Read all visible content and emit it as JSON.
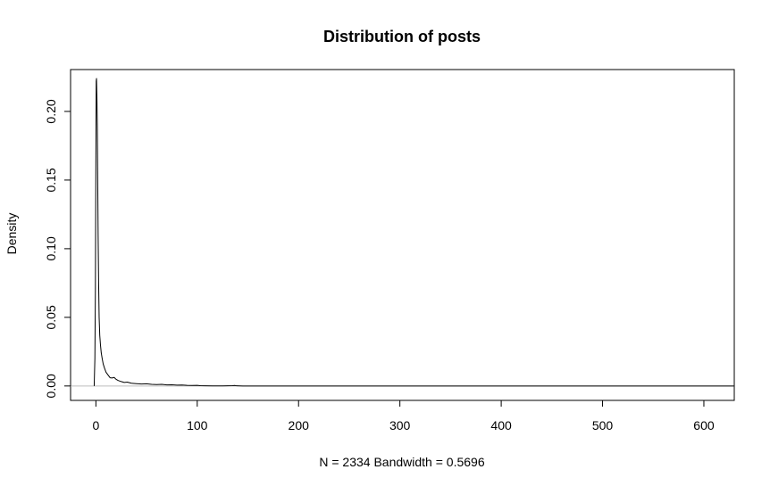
{
  "chart_data": {
    "type": "line",
    "title": "Distribution of posts",
    "xlabel": "N = 2334   Bandwidth = 0.5696",
    "ylabel": "Density",
    "xlim": [
      -25,
      630
    ],
    "ylim": [
      -0.0105,
      0.2305
    ],
    "x_ticks": [
      0,
      100,
      200,
      300,
      400,
      500,
      600
    ],
    "y_ticks": [
      0.0,
      0.05,
      0.1,
      0.15,
      0.2
    ],
    "x_tick_labels": [
      "0",
      "100",
      "200",
      "300",
      "400",
      "500",
      "600"
    ],
    "y_tick_labels": [
      "0.00",
      "0.05",
      "0.10",
      "0.15",
      "0.20"
    ],
    "grid": false,
    "baseline": {
      "y": 0,
      "color": "#bebebe"
    },
    "series": [
      {
        "color": "#000000",
        "x": [
          -1.7,
          -1.0,
          -0.5,
          0.0,
          0.3,
          0.6,
          1.0,
          1.4,
          1.8,
          2.2,
          2.7,
          3.2,
          3.8,
          4.5,
          5.3,
          6.2,
          7.2,
          8.5,
          10,
          12,
          14,
          16,
          18,
          20,
          22,
          25,
          28,
          31,
          35,
          40,
          45,
          50,
          55,
          60,
          65,
          70,
          75,
          80,
          85,
          90,
          95,
          100,
          103,
          108,
          115,
          125,
          135,
          137,
          139,
          145,
          200,
          300,
          400,
          500,
          600,
          630
        ],
        "y": [
          0.0,
          0.02,
          0.07,
          0.17,
          0.222,
          0.224,
          0.21,
          0.19,
          0.15,
          0.11,
          0.075,
          0.05,
          0.037,
          0.03,
          0.024,
          0.02,
          0.016,
          0.013,
          0.01,
          0.008,
          0.006,
          0.0058,
          0.0062,
          0.0048,
          0.004,
          0.0032,
          0.0026,
          0.0028,
          0.002,
          0.0017,
          0.0014,
          0.0016,
          0.0012,
          0.001,
          0.0012,
          0.0008,
          0.0009,
          0.0006,
          0.0007,
          0.0005,
          0.0004,
          0.0005,
          0.0002,
          0.0001,
          5e-05,
          3e-05,
          0.0002,
          0.0004,
          0.0001,
          0.0,
          0.0,
          0.0,
          0.0,
          0.0,
          0.0,
          0.0
        ]
      }
    ]
  }
}
